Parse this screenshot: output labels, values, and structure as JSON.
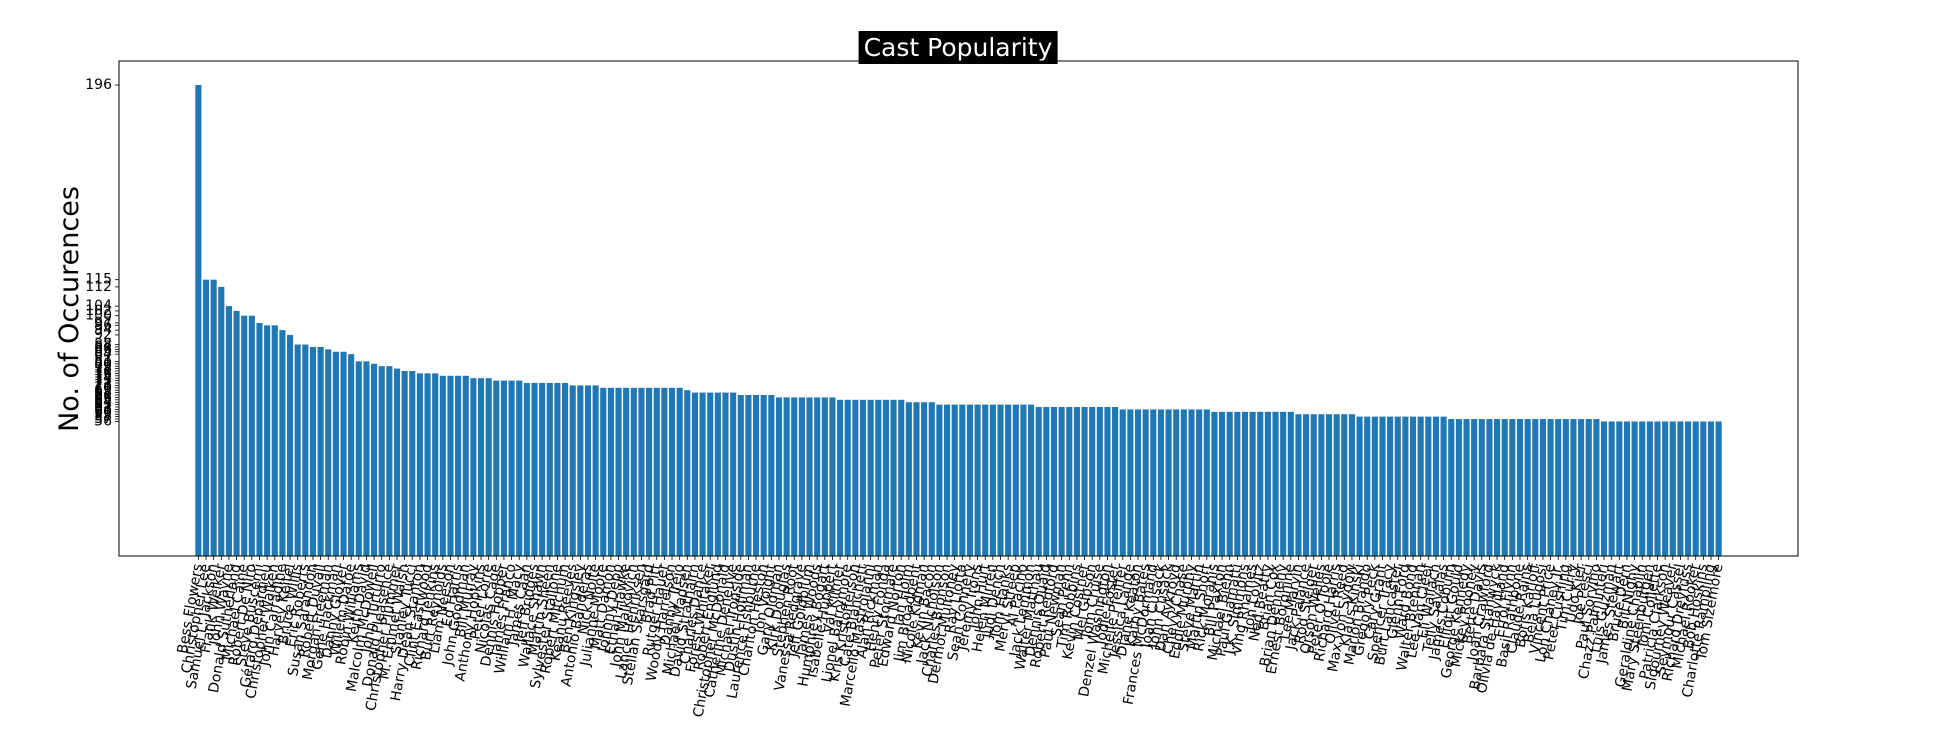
{
  "chart_data": {
    "type": "bar",
    "title": "Cast Popularity",
    "ylabel": "No. of Occurences",
    "color": "#1f77b4",
    "categories": [
      "Bess Flowers",
      "Christopher Lee",
      "Samuel L. Jackson",
      "Frank Welker",
      "John Wayne",
      "Donald Sutherland",
      "Michael Caine",
      "Robert De Niro",
      "Steve Buscemi",
      "Gérard Depardieu",
      "Christopher Walken",
      "John Carradine",
      "Harvey Keitel",
      "Bruce Willis",
      "Eric Roberts",
      "Susan Sarandon",
      "Robert Duvall",
      "Morgan Freeman",
      "Gene Hackman",
      "Danny Glover",
      "Willem Dafoe",
      "Robin Williams",
      "Keith David",
      "Malcolm McDowell",
      "John Turturro",
      "Donald Pleasence",
      "Christopher Plummer",
      "M. Emmet Walsh",
      "Stanley Tucci",
      "Harry Dean Stanton",
      "Clint Eastwood",
      "Richard Jenkins",
      "Burt Reynolds",
      "Liam Neeson",
      "Ed Harris",
      "John Goodman",
      "Bill Murray",
      "Anthony Hopkins",
      "Peter Lorre",
      "Nicolas Cage",
      "Dennis Hopper",
      "James Franco",
      "William H. Macy",
      "James Caan",
      "Jeff Bridges",
      "Wallace Shawn",
      "Martin Sheen",
      "Sylvester Stallone",
      "Robert Mitchum",
      "Keanu Reeves",
      "Ben Kingsley",
      "Antonio Banderas",
      "Nick Nolte",
      "Julianne Moore",
      "Matt Damon",
      "Johnny Depp",
      "Ethan Hawke",
      "John Malkovich",
      "Lance Henriksen",
      "Stellan Skarsgård",
      "Brad Pitt",
      "Rutger Hauer",
      "Woody Harrelson",
      "Danny Trejo",
      "Michael Madsen",
      "David Strathairn",
      "Charles Dance",
      "Forest Whitaker",
      "Robert Englund",
      "Christopher McDonald",
      "Catherine Deneuve",
      "Michael Ironside",
      "Dustin Hoffman",
      "Laurence Fishburne",
      "Charlton Heston",
      "Jon Voight",
      "Gary Oldman",
      "Kirk Douglas",
      "Stephen Root",
      "Vanessa Redgrave",
      "Jeff Goldblum",
      "James Woods",
      "Humphrey Bogart",
      "Isabelle Huppert",
      "Val Kilmer",
      "Lionel Barrymore",
      "Kris Kristofferson",
      "Cate Blanchett",
      "Marcello Mastroianni",
      "Alan Rickman",
      "Henry Fonda",
      "Peter Stormare",
      "Edward Norton",
      "Ian Holm",
      "Jim Broadbent",
      "Nicole Kidman",
      "Kevin Bacon",
      "Jack Nicholson",
      "Charles Bronson",
      "Dermot Mulroney",
      "Ray Liotta",
      "Sean Connery",
      "Jeremy Irons",
      "John Hurt",
      "Helen Mirren",
      "Judi Dench",
      "Tom Hanks",
      "Meryl Streep",
      "Al Pacino",
      "Jack Lemmon",
      "Walter Matthau",
      "Dennis Quaid",
      "Robert Redford",
      "Paul Newman",
      "Sean Penn",
      "Tim Robbins",
      "Kevin Costner",
      "Mel Gibson",
      "Tom Cruise",
      "Denzel Washington",
      "Jodie Foster",
      "Michelle Pfeiffer",
      "Jessica Lange",
      "Diane Keaton",
      "Kathy Bates",
      "Frances McDormand",
      "Joan Cusack",
      "John Cusack",
      "Dan Aykroyd",
      "Chevy Chase",
      "Eddie Murphy",
      "Steve Martin",
      "Martin Short",
      "Rick Moranis",
      "Bill Paxton",
      "Michael Biehn",
      "Paul Giamatti",
      "J.K. Simmons",
      "Ving Rhames",
      "Jon Lovitz",
      "Ned Beatty",
      "Brian Cox",
      "Brian Dennehy",
      "Ernest Borgnine",
      "Lee Marvin",
      "Jack Palance",
      "Rod Steiger",
      "Orson Welles",
      "Peter O'Toole",
      "Richard Harris",
      "Oliver Reed",
      "Max von Sydow",
      "Klaus Kinski",
      "Marlon Brando",
      "Gregory Peck",
      "Cary Grant",
      "Spencer Tracy",
      "Burt Lancaster",
      "Glenn Ford",
      "Ward Bond",
      "Walter Brennan",
      "Lee Van Cleef",
      "Eli Wallach",
      "Telly Savalas",
      "James Coburn",
      "Elliott Gould",
      "George Kennedy",
      "Mickey Rooney",
      "Bette Davis",
      "Joan Crawford",
      "Barbara Stanwyck",
      "Olivia de Havilland",
      "Errol Flynn",
      "Basil Rathbone",
      "Claude Rains",
      "Boris Karloff",
      "Bela Lugosi",
      "Vincent Price",
      "Lon Chaney Jr.",
      "Peter Cushing",
      "Tim Curry",
      "Udo Kier",
      "Joe Pesci",
      "Paul Sorvino",
      "Chazz Palminteri",
      "Luis Guzmán",
      "James Stewart",
      "Bruce Dern",
      "Bill Nighy",
      "Geraldine Chaplin",
      "Mary Steenburgen",
      "Toni Collette",
      "Patricia Clarkson",
      "Sigourney Weaver",
      "Seymour Cassel",
      "Richard Dreyfuss",
      "Michael Rooker",
      "Bob Hoskins",
      "Charlotte Rampling",
      "Tom Sizemore"
    ],
    "values": [
      196,
      115,
      115,
      112,
      104,
      102,
      100,
      100,
      97,
      96,
      96,
      94,
      92,
      88,
      88,
      87,
      87,
      86,
      85,
      85,
      84,
      81,
      81,
      80,
      79,
      79,
      78,
      77,
      77,
      76,
      76,
      76,
      75,
      75,
      75,
      75,
      74,
      74,
      74,
      73,
      73,
      73,
      73,
      72,
      72,
      72,
      72,
      72,
      72,
      71,
      71,
      71,
      71,
      70,
      70,
      70,
      70,
      70,
      70,
      70,
      70,
      70,
      70,
      70,
      69,
      68,
      68,
      68,
      68,
      68,
      68,
      67,
      67,
      67,
      67,
      67,
      66,
      66,
      66,
      66,
      66,
      66,
      66,
      66,
      65,
      65,
      65,
      65,
      65,
      65,
      65,
      65,
      65,
      64,
      64,
      64,
      64,
      63,
      63,
      63,
      63,
      63,
      63,
      63,
      63,
      63,
      63,
      63,
      63,
      63,
      62,
      62,
      62,
      62,
      62,
      62,
      62,
      62,
      62,
      62,
      62,
      61,
      61,
      61,
      61,
      61,
      61,
      61,
      61,
      61,
      61,
      61,
      61,
      60,
      60,
      60,
      60,
      60,
      60,
      60,
      60,
      60,
      60,
      60,
      59,
      59,
      59,
      59,
      59,
      59,
      59,
      59,
      58,
      58,
      58,
      58,
      58,
      58,
      58,
      58,
      58,
      58,
      58,
      58,
      57,
      57,
      57,
      57,
      57,
      57,
      57,
      57,
      57,
      57,
      57,
      57,
      57,
      57,
      57,
      57,
      57,
      57,
      57,
      57,
      56,
      56,
      56,
      56,
      56,
      56,
      56,
      56,
      56,
      56,
      56,
      56,
      56,
      56,
      56,
      56
    ],
    "ylim": [
      0,
      206
    ],
    "yticks": [
      196,
      115,
      112,
      104,
      102,
      100,
      97,
      96,
      94,
      92,
      88,
      87,
      86,
      85,
      84,
      81,
      80,
      79,
      78,
      77,
      76,
      75,
      74,
      73,
      72,
      71,
      70,
      69,
      68,
      67,
      66,
      65,
      64,
      63,
      62,
      61,
      60,
      59,
      58,
      57,
      56
    ]
  }
}
